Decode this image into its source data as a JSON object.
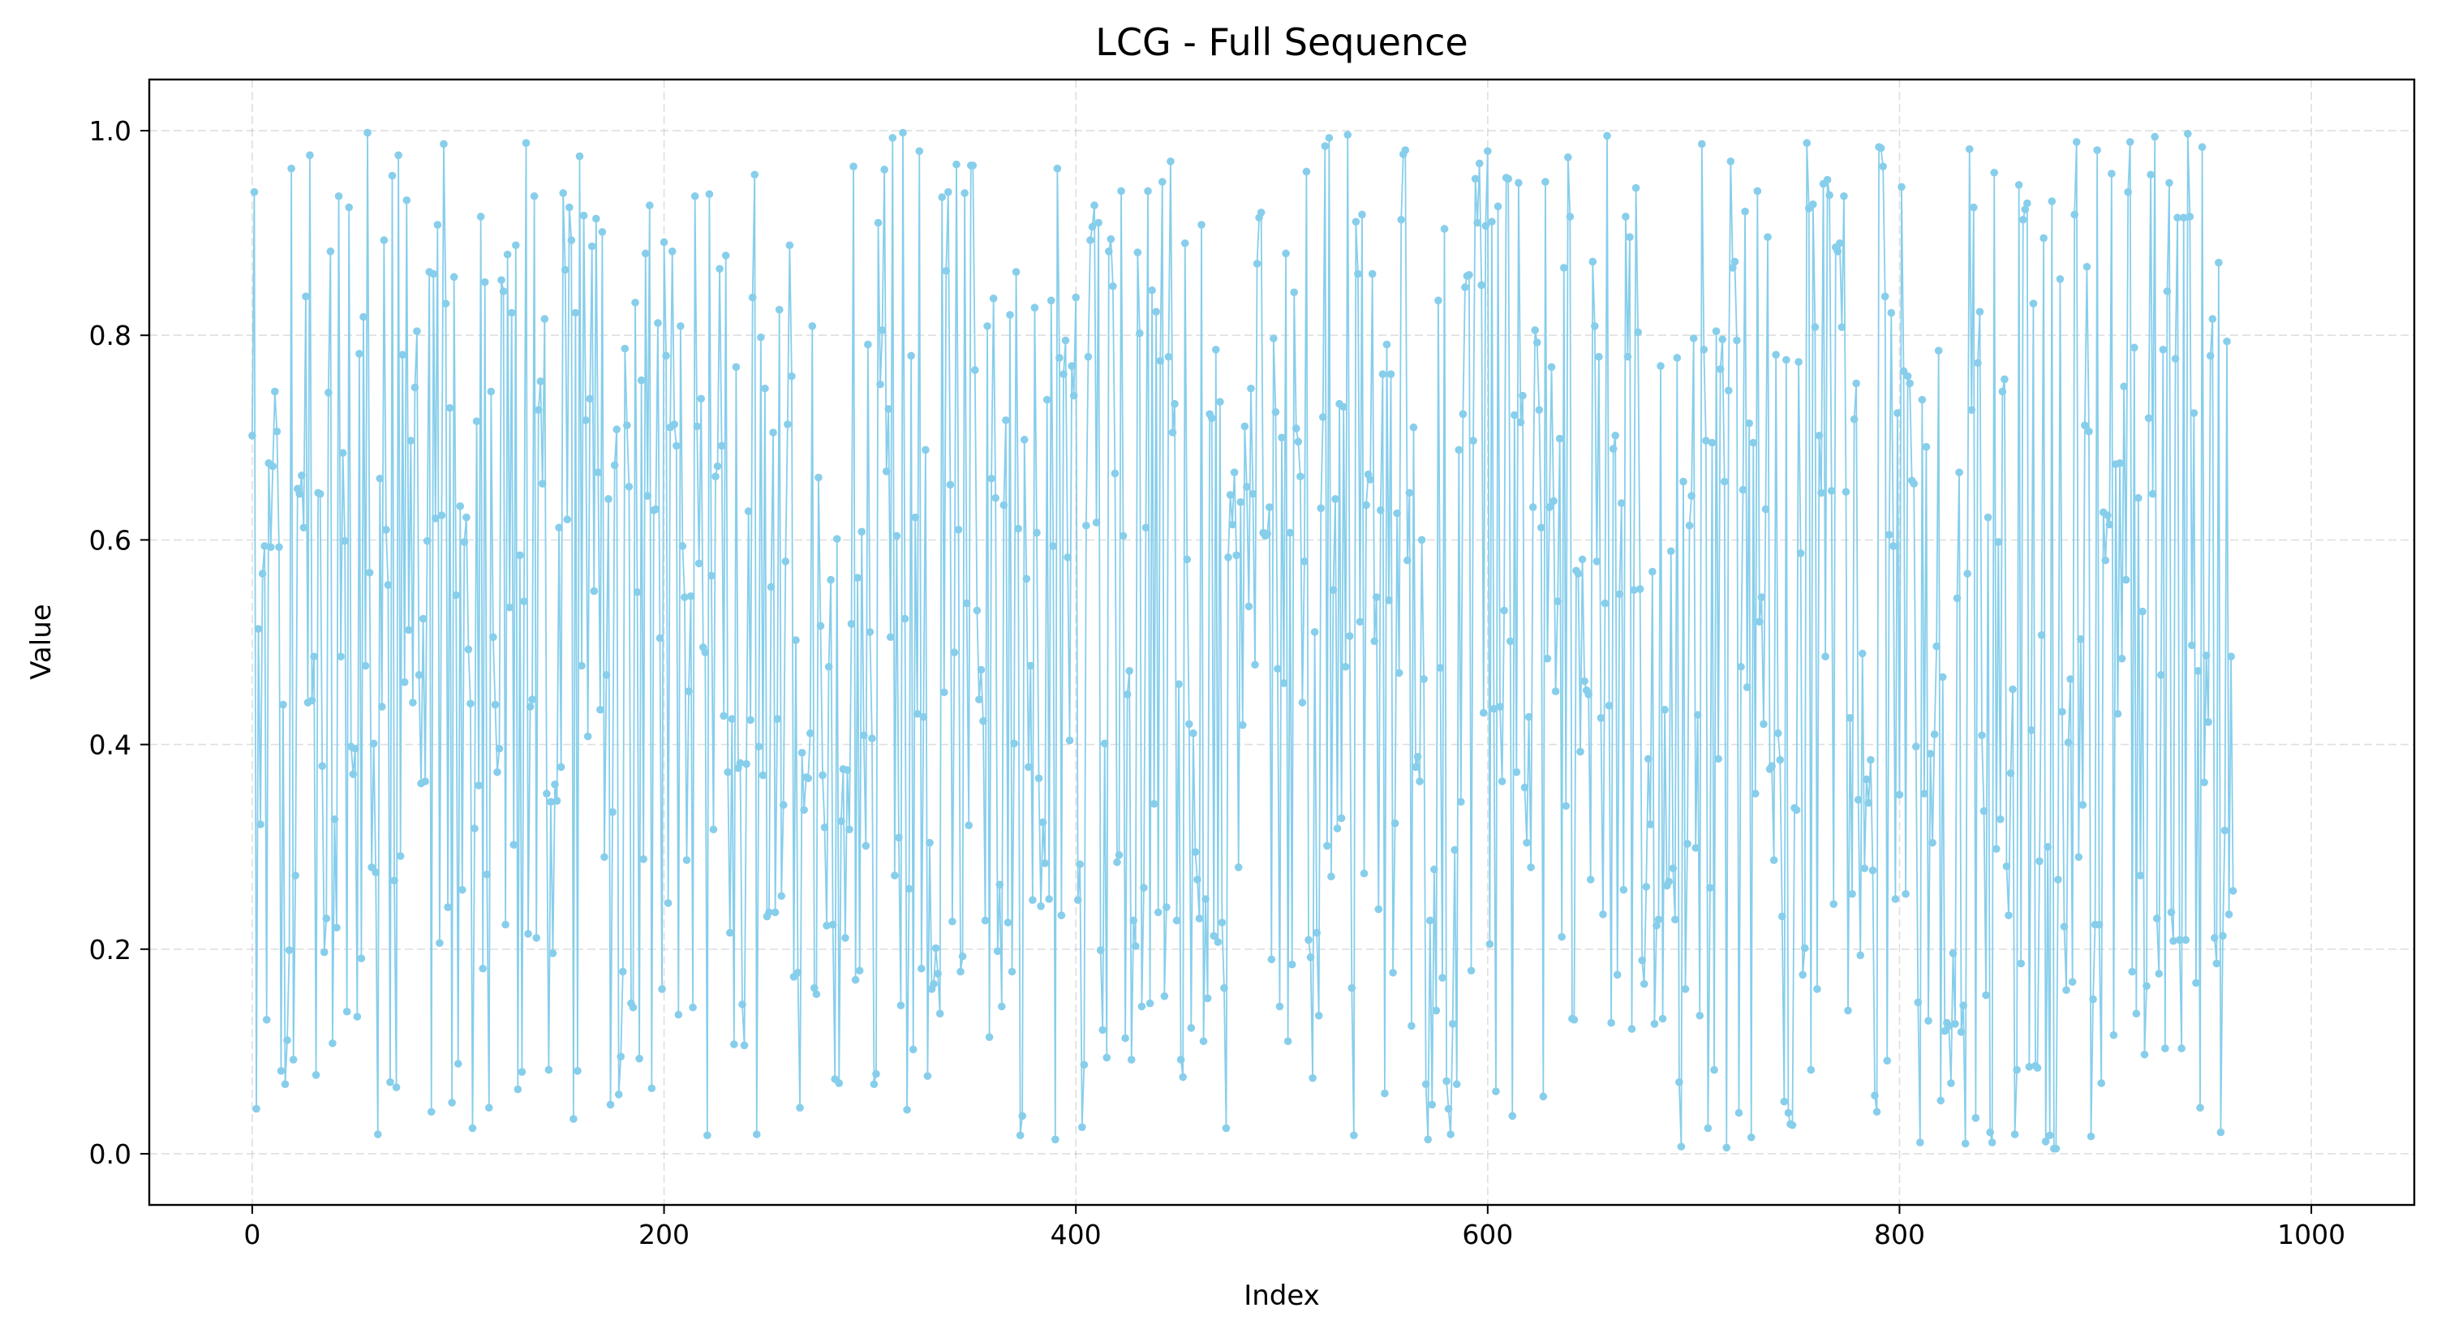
{
  "chart_data": {
    "type": "line",
    "title": "LCG - Full Sequence",
    "xlabel": "Index",
    "ylabel": "Value",
    "xlim": [
      -50,
      1050
    ],
    "ylim": [
      -0.05,
      1.05
    ],
    "x_ticks": [
      0,
      200,
      400,
      600,
      800,
      1000
    ],
    "x_tick_labels": [
      "0",
      "200",
      "400",
      "600",
      "800",
      "1000"
    ],
    "y_ticks": [
      0.0,
      0.2,
      0.4,
      0.6,
      0.8,
      1.0
    ],
    "y_tick_labels": [
      "0.0",
      "0.2",
      "0.4",
      "0.6",
      "0.8",
      "1.0"
    ],
    "grid": true,
    "series": [
      {
        "name": "LCG",
        "color": "#87ceeb",
        "marker": "circle",
        "x_start": 0,
        "x_step": 1,
        "values": [
          0.702,
          0.94,
          0.044,
          0.513,
          0.322,
          0.567,
          0.594,
          0.131,
          0.675,
          0.593,
          0.672,
          0.745,
          0.706,
          0.593,
          0.081,
          0.439,
          0.068,
          0.111,
          0.199,
          0.963,
          0.092,
          0.272,
          0.65,
          0.645,
          0.663,
          0.612,
          0.838,
          0.441,
          0.976,
          0.443,
          0.486,
          0.077,
          0.646,
          0.645,
          0.379,
          0.197,
          0.23,
          0.744,
          0.882,
          0.108,
          0.327,
          0.221,
          0.936,
          0.486,
          0.685,
          0.599,
          0.139,
          0.925,
          0.398,
          0.371,
          0.396,
          0.134,
          0.782,
          0.191,
          0.818,
          0.477,
          0.998,
          0.568,
          0.28,
          0.401,
          0.275,
          0.019,
          0.66,
          0.437,
          0.893,
          0.61,
          0.556,
          0.07,
          0.956,
          0.267,
          0.065,
          0.976,
          0.291,
          0.781,
          0.461,
          0.932,
          0.512,
          0.697,
          0.441,
          0.749,
          0.804,
          0.468,
          0.362,
          0.523,
          0.364,
          0.599,
          0.862,
          0.041,
          0.86,
          0.621,
          0.908,
          0.206,
          0.624,
          0.987,
          0.831,
          0.241,
          0.729,
          0.05,
          0.857,
          0.546,
          0.088,
          0.633,
          0.258,
          0.598,
          0.622,
          0.493,
          0.44,
          0.025,
          0.318,
          0.716,
          0.36,
          0.916,
          0.181,
          0.852,
          0.273,
          0.045,
          0.745,
          0.505,
          0.439,
          0.373,
          0.396,
          0.854,
          0.843,
          0.224,
          0.879,
          0.534,
          0.822,
          0.302,
          0.888,
          0.063,
          0.585,
          0.08,
          0.54,
          0.988,
          0.215,
          0.437,
          0.444,
          0.936,
          0.211,
          0.727,
          0.755,
          0.655,
          0.816,
          0.352,
          0.082,
          0.344,
          0.196,
          0.361,
          0.345,
          0.612,
          0.378,
          0.939,
          0.864,
          0.62,
          0.925,
          0.893,
          0.034,
          0.822,
          0.081,
          0.975,
          0.477,
          0.917,
          0.717,
          0.408,
          0.738,
          0.887,
          0.55,
          0.914,
          0.666,
          0.434,
          0.901,
          0.29,
          0.468,
          0.64,
          0.048,
          0.334,
          0.673,
          0.708,
          0.058,
          0.095,
          0.178,
          0.787,
          0.712,
          0.652,
          0.147,
          0.143,
          0.832,
          0.549,
          0.093,
          0.756,
          0.288,
          0.88,
          0.643,
          0.927,
          0.064,
          0.629,
          0.63,
          0.812,
          0.504,
          0.161,
          0.891,
          0.78,
          0.245,
          0.71,
          0.882,
          0.713,
          0.692,
          0.136,
          0.809,
          0.594,
          0.544,
          0.287,
          0.452,
          0.545,
          0.143,
          0.936,
          0.711,
          0.577,
          0.738,
          0.495,
          0.49,
          0.018,
          0.938,
          0.565,
          0.317,
          0.662,
          0.672,
          0.865,
          0.692,
          0.428,
          0.878,
          0.373,
          0.216,
          0.425,
          0.107,
          0.769,
          0.377,
          0.382,
          0.146,
          0.106,
          0.381,
          0.628,
          0.424,
          0.837,
          0.957,
          0.019,
          0.398,
          0.798,
          0.37,
          0.748,
          0.232,
          0.236,
          0.554,
          0.705,
          0.236,
          0.425,
          0.825,
          0.252,
          0.341,
          0.579,
          0.713,
          0.888,
          0.76,
          0.173,
          0.502,
          0.177,
          0.045,
          0.392,
          0.336,
          0.368,
          0.367,
          0.411,
          0.809,
          0.162,
          0.156,
          0.661,
          0.516,
          0.37,
          0.319,
          0.223,
          0.476,
          0.561,
          0.224,
          0.073,
          0.601,
          0.069,
          0.325,
          0.376,
          0.211,
          0.375,
          0.317,
          0.518,
          0.965,
          0.17,
          0.563,
          0.179,
          0.608,
          0.409,
          0.301,
          0.791,
          0.51,
          0.406,
          0.068,
          0.078,
          0.91,
          0.752,
          0.805,
          0.962,
          0.667,
          0.728,
          0.505,
          0.993,
          0.272,
          0.604,
          0.309,
          0.145,
          0.998,
          0.523,
          0.043,
          0.259,
          0.78,
          0.102,
          0.622,
          0.43,
          0.98,
          0.181,
          0.427,
          0.688,
          0.076,
          0.304,
          0.161,
          0.166,
          0.201,
          0.176,
          0.137,
          0.935,
          0.451,
          0.863,
          0.94,
          0.654,
          0.227,
          0.49,
          0.967,
          0.61,
          0.178,
          0.193,
          0.939,
          0.538,
          0.321,
          0.966,
          0.966,
          0.766,
          0.531,
          0.444,
          0.473,
          0.423,
          0.228,
          0.809,
          0.114,
          0.66,
          0.836,
          0.641,
          0.198,
          0.263,
          0.144,
          0.634,
          0.717,
          0.226,
          0.82,
          0.178,
          0.401,
          0.862,
          0.611,
          0.018,
          0.037,
          0.698,
          0.562,
          0.378,
          0.477,
          0.248,
          0.827,
          0.607,
          0.367,
          0.242,
          0.324,
          0.284,
          0.737,
          0.249,
          0.834,
          0.594,
          0.014,
          0.963,
          0.778,
          0.233,
          0.762,
          0.795,
          0.583,
          0.404,
          0.77,
          0.741,
          0.837,
          0.248,
          0.283,
          0.026,
          0.087,
          0.614,
          0.779,
          0.893,
          0.906,
          0.927,
          0.617,
          0.91,
          0.199,
          0.121,
          0.401,
          0.094,
          0.882,
          0.894,
          0.848,
          0.665,
          0.285,
          0.292,
          0.941,
          0.604,
          0.113,
          0.449,
          0.472,
          0.092,
          0.228,
          0.203,
          0.881,
          0.802,
          0.144,
          0.26,
          0.612,
          0.941,
          0.147,
          0.844,
          0.342,
          0.823,
          0.236,
          0.775,
          0.95,
          0.154,
          0.241,
          0.779,
          0.97,
          0.705,
          0.733,
          0.228,
          0.459,
          0.092,
          0.075,
          0.89,
          0.581,
          0.42,
          0.123,
          0.411,
          0.295,
          0.268,
          0.23,
          0.908,
          0.11,
          0.249,
          0.152,
          0.723,
          0.719,
          0.213,
          0.786,
          0.207,
          0.735,
          0.226,
          0.162,
          0.025,
          0.583,
          0.644,
          0.615,
          0.666,
          0.585,
          0.28,
          0.637,
          0.419,
          0.711,
          0.652,
          0.535,
          0.748,
          0.645,
          0.478,
          0.87,
          0.915,
          0.92,
          0.607,
          0.604,
          0.606,
          0.632,
          0.19,
          0.797,
          0.725,
          0.474,
          0.144,
          0.7,
          0.46,
          0.88,
          0.11,
          0.607,
          0.185,
          0.842,
          0.709,
          0.696,
          0.662,
          0.441,
          0.579,
          0.96,
          0.209,
          0.192,
          0.074,
          0.51,
          0.216,
          0.135,
          0.631,
          0.72,
          0.985,
          0.301,
          0.993,
          0.271,
          0.551,
          0.64,
          0.318,
          0.733,
          0.328,
          0.73,
          0.476,
          0.996,
          0.506,
          0.162,
          0.018,
          0.911,
          0.86,
          0.52,
          0.918,
          0.274,
          0.634,
          0.664,
          0.659,
          0.86,
          0.501,
          0.544,
          0.239,
          0.629,
          0.762,
          0.059,
          0.791,
          0.541,
          0.762,
          0.177,
          0.323,
          0.626,
          0.47,
          0.913,
          0.977,
          0.981,
          0.58,
          0.646,
          0.125,
          0.71,
          0.378,
          0.388,
          0.364,
          0.6,
          0.464,
          0.068,
          0.014,
          0.228,
          0.048,
          0.278,
          0.14,
          0.834,
          0.475,
          0.172,
          0.904,
          0.071,
          0.044,
          0.019,
          0.127,
          0.297,
          0.068,
          0.688,
          0.344,
          0.723,
          0.847,
          0.858,
          0.859,
          0.179,
          0.697,
          0.953,
          0.91,
          0.968,
          0.849,
          0.431,
          0.907,
          0.98,
          0.205,
          0.911,
          0.435,
          0.061,
          0.926,
          0.437,
          0.364,
          0.531,
          0.954,
          0.953,
          0.501,
          0.037,
          0.722,
          0.373,
          0.949,
          0.715,
          0.741,
          0.358,
          0.304,
          0.427,
          0.28,
          0.632,
          0.805,
          0.793,
          0.727,
          0.612,
          0.056,
          0.95,
          0.484,
          0.632,
          0.769,
          0.638,
          0.452,
          0.54,
          0.699,
          0.212,
          0.866,
          0.34,
          0.974,
          0.916,
          0.132,
          0.131,
          0.57,
          0.567,
          0.393,
          0.581,
          0.462,
          0.453,
          0.449,
          0.268,
          0.872,
          0.809,
          0.579,
          0.779,
          0.426,
          0.234,
          0.538,
          0.995,
          0.438,
          0.128,
          0.689,
          0.702,
          0.175,
          0.547,
          0.636,
          0.258,
          0.916,
          0.779,
          0.896,
          0.122,
          0.551,
          0.944,
          0.803,
          0.552,
          0.189,
          0.166,
          0.261,
          0.386,
          0.322,
          0.569,
          0.127,
          0.223,
          0.229,
          0.77,
          0.132,
          0.434,
          0.262,
          0.266,
          0.589,
          0.279,
          0.229,
          0.778,
          0.07,
          0.007,
          0.657,
          0.161,
          0.303,
          0.614,
          0.643,
          0.797,
          0.299,
          0.429,
          0.135,
          0.987,
          0.786,
          0.697,
          0.025,
          0.26,
          0.695,
          0.082,
          0.804,
          0.386,
          0.767,
          0.796,
          0.657,
          0.006,
          0.746,
          0.97,
          0.866,
          0.872,
          0.795,
          0.04,
          0.476,
          0.649,
          0.921,
          0.456,
          0.714,
          0.016,
          0.695,
          0.352,
          0.941,
          0.52,
          0.544,
          0.42,
          0.63,
          0.896,
          0.376,
          0.379,
          0.287,
          0.781,
          0.411,
          0.385,
          0.232,
          0.051,
          0.776,
          0.04,
          0.029,
          0.028,
          0.338,
          0.336,
          0.774,
          0.587,
          0.175,
          0.201,
          0.988,
          0.924,
          0.082,
          0.928,
          0.808,
          0.161,
          0.702,
          0.646,
          0.948,
          0.486,
          0.952,
          0.937,
          0.648,
          0.244,
          0.886,
          0.882,
          0.89,
          0.808,
          0.936,
          0.647,
          0.14,
          0.426,
          0.254,
          0.718,
          0.753,
          0.346,
          0.194,
          0.489,
          0.279,
          0.366,
          0.343,
          0.385,
          0.277,
          0.057,
          0.041,
          0.984,
          0.983,
          0.965,
          0.838,
          0.091,
          0.605,
          0.822,
          0.594,
          0.249,
          0.724,
          0.351,
          0.945,
          0.765,
          0.254,
          0.76,
          0.753,
          0.658,
          0.655,
          0.398,
          0.148,
          0.011,
          0.737,
          0.352,
          0.691,
          0.13,
          0.391,
          0.304,
          0.41,
          0.496,
          0.785,
          0.052,
          0.466,
          0.12,
          0.128,
          0.125,
          0.069,
          0.196,
          0.127,
          0.543,
          0.666,
          0.119,
          0.145,
          0.01,
          0.567,
          0.982,
          0.727,
          0.925,
          0.035,
          0.773,
          0.823,
          0.409,
          0.335,
          0.155,
          0.622,
          0.021,
          0.011,
          0.959,
          0.298,
          0.598,
          0.327,
          0.745,
          0.757,
          0.281,
          0.233,
          0.372,
          0.454,
          0.019,
          0.082,
          0.947,
          0.186,
          0.913,
          0.923,
          0.929,
          0.085,
          0.414,
          0.831,
          0.086,
          0.084,
          0.286,
          0.507,
          0.895,
          0.012,
          0.3,
          0.018,
          0.931,
          0.005,
          0.005,
          0.268,
          0.855,
          0.432,
          0.222,
          0.16,
          0.402,
          0.464,
          0.168,
          0.918,
          0.989,
          0.29,
          0.503,
          0.341,
          0.712,
          0.867,
          0.706,
          0.017,
          0.151,
          0.224,
          0.981,
          0.224,
          0.069,
          0.627,
          0.58,
          0.624,
          0.615,
          0.958,
          0.116,
          0.674,
          0.43,
          0.675,
          0.484,
          0.75,
          0.561,
          0.94,
          0.989,
          0.178,
          0.788,
          0.137,
          0.641,
          0.272,
          0.53,
          0.097,
          0.164,
          0.719,
          0.957,
          0.645,
          0.994,
          0.23,
          0.176,
          0.468,
          0.786,
          0.103,
          0.843,
          0.949,
          0.236,
          0.208,
          0.777,
          0.915,
          0.209,
          0.103,
          0.915,
          0.209,
          0.997,
          0.916,
          0.497,
          0.724,
          0.167,
          0.472,
          0.045,
          0.984,
          0.363,
          0.487,
          0.422,
          0.78,
          0.816,
          0.211,
          0.186,
          0.871,
          0.021,
          0.213,
          0.316,
          0.794,
          0.234,
          0.486,
          0.257
        ]
      }
    ]
  }
}
